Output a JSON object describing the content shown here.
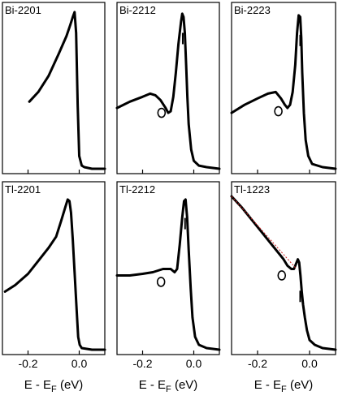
{
  "chart_data": [
    {
      "type": "line",
      "title": "Bi-2201",
      "xlim": [
        -0.3,
        0.1
      ],
      "x_ticks": [
        -0.2,
        0.0
      ],
      "x_tick_labels": [],
      "xlabel": "",
      "y_axis": "intensity (arbitrary units, not labeled)",
      "series": [
        {
          "x": [
            -0.195,
            -0.16,
            -0.12,
            -0.08,
            -0.05,
            -0.035,
            -0.025,
            -0.018,
            -0.012,
            -0.006,
            0.0,
            0.01,
            0.02,
            0.05,
            0.1
          ],
          "y": [
            0.42,
            0.48,
            0.58,
            0.72,
            0.83,
            0.9,
            0.95,
            0.98,
            0.85,
            0.4,
            0.08,
            0.02,
            0.01,
            0.0,
            0.0
          ]
        }
      ],
      "marker_line_x": null,
      "circle": null
    },
    {
      "type": "line",
      "title": "Bi-2212",
      "xlim": [
        -0.3,
        0.1
      ],
      "x_ticks": [
        -0.2,
        0.0
      ],
      "x_tick_labels": [],
      "xlabel": "",
      "series": [
        {
          "x": [
            -0.3,
            -0.25,
            -0.2,
            -0.17,
            -0.15,
            -0.13,
            -0.11,
            -0.1,
            -0.09,
            -0.08,
            -0.07,
            -0.06,
            -0.05,
            -0.045,
            -0.04,
            -0.035,
            -0.03,
            -0.025,
            -0.02,
            -0.01,
            0.0,
            0.02,
            0.05,
            0.1
          ],
          "y": [
            0.38,
            0.42,
            0.45,
            0.47,
            0.46,
            0.43,
            0.38,
            0.35,
            0.36,
            0.45,
            0.6,
            0.78,
            0.92,
            0.97,
            0.95,
            0.85,
            0.65,
            0.45,
            0.28,
            0.12,
            0.05,
            0.02,
            0.01,
            0.0
          ]
        }
      ],
      "marker_line_x": -0.043,
      "circle": {
        "x": -0.126,
        "y": 0.35
      }
    },
    {
      "type": "line",
      "title": "Bi-2223",
      "xlim": [
        -0.3,
        0.1
      ],
      "x_ticks": [
        -0.2,
        0.0
      ],
      "x_tick_labels": [],
      "xlabel": "",
      "series": [
        {
          "x": [
            -0.3,
            -0.25,
            -0.2,
            -0.16,
            -0.13,
            -0.11,
            -0.095,
            -0.085,
            -0.075,
            -0.065,
            -0.055,
            -0.048,
            -0.042,
            -0.036,
            -0.032,
            -0.028,
            -0.022,
            -0.015,
            -0.005,
            0.01,
            0.05,
            0.1
          ],
          "y": [
            0.35,
            0.4,
            0.44,
            0.47,
            0.48,
            0.44,
            0.4,
            0.38,
            0.4,
            0.48,
            0.65,
            0.85,
            0.96,
            0.95,
            0.82,
            0.6,
            0.35,
            0.18,
            0.08,
            0.03,
            0.01,
            0.0
          ]
        }
      ],
      "marker_line_x": -0.036,
      "circle": {
        "x": -0.12,
        "y": 0.36
      }
    },
    {
      "type": "line",
      "title": "Tl-2201",
      "xlim": [
        -0.3,
        0.1
      ],
      "x_ticks": [
        -0.2,
        0.0
      ],
      "x_tick_labels": [
        "-0.2",
        "0.0"
      ],
      "xlabel": "E - E_F (eV)",
      "series": [
        {
          "x": [
            -0.29,
            -0.25,
            -0.2,
            -0.16,
            -0.12,
            -0.09,
            -0.07,
            -0.055,
            -0.045,
            -0.038,
            -0.032,
            -0.025,
            -0.018,
            -0.01,
            -0.004,
            0.002,
            0.01,
            0.05,
            0.1
          ],
          "y": [
            0.36,
            0.4,
            0.47,
            0.55,
            0.63,
            0.7,
            0.8,
            0.88,
            0.93,
            0.92,
            0.85,
            0.68,
            0.48,
            0.25,
            0.08,
            0.03,
            0.01,
            0.0,
            0.0
          ]
        }
      ],
      "marker_line_x": null,
      "circle": null
    },
    {
      "type": "line",
      "title": "Tl-2212",
      "xlim": [
        -0.3,
        0.1
      ],
      "x_ticks": [
        -0.2,
        0.0
      ],
      "x_tick_labels": [
        "-0.2",
        "0.0"
      ],
      "xlabel": "E - E_F (eV)",
      "series": [
        {
          "x": [
            -0.3,
            -0.25,
            -0.2,
            -0.16,
            -0.12,
            -0.09,
            -0.075,
            -0.065,
            -0.055,
            -0.045,
            -0.038,
            -0.032,
            -0.026,
            -0.02,
            -0.012,
            -0.005,
            0.005,
            0.02,
            0.05,
            0.1
          ],
          "y": [
            0.46,
            0.46,
            0.47,
            0.48,
            0.5,
            0.5,
            0.48,
            0.5,
            0.65,
            0.82,
            0.92,
            0.93,
            0.82,
            0.62,
            0.38,
            0.2,
            0.08,
            0.03,
            0.01,
            0.0
          ]
        }
      ],
      "marker_line_x": -0.034,
      "circle": {
        "x": -0.128,
        "y": 0.42
      }
    },
    {
      "type": "line",
      "title": "Tl-1223",
      "xlim": [
        -0.3,
        0.1
      ],
      "x_ticks": [
        -0.2,
        0.0
      ],
      "x_tick_labels": [
        "-0.2",
        "0.0"
      ],
      "xlabel": "E - E_F (eV)",
      "series": [
        {
          "x": [
            -0.3,
            -0.26,
            -0.22,
            -0.18,
            -0.15,
            -0.12,
            -0.1,
            -0.085,
            -0.07,
            -0.06,
            -0.05,
            -0.045,
            -0.04,
            -0.035,
            -0.03,
            -0.025,
            -0.018,
            -0.01,
            0.0,
            0.02,
            0.05,
            0.1
          ],
          "y": [
            0.95,
            0.88,
            0.8,
            0.72,
            0.66,
            0.6,
            0.56,
            0.52,
            0.5,
            0.5,
            0.54,
            0.56,
            0.54,
            0.46,
            0.36,
            0.28,
            0.2,
            0.12,
            0.06,
            0.03,
            0.01,
            0.0
          ]
        }
      ],
      "fit_line": {
        "x": [
          -0.3,
          -0.05
        ],
        "y": [
          0.95,
          0.5
        ]
      },
      "marker_line_x": -0.036,
      "circle": {
        "x": -0.107,
        "y": 0.46
      }
    }
  ]
}
